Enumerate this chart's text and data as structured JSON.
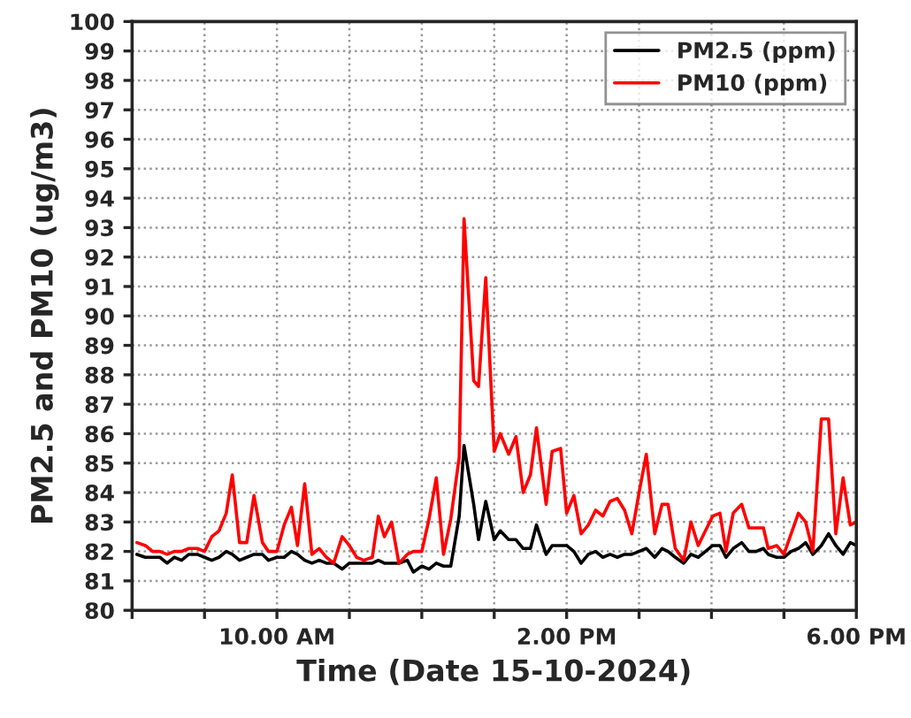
{
  "chart_data": {
    "type": "line",
    "xlabel": "Time (Date 15-10-2024)",
    "ylabel": "PM2.5 and PM10 (ug/m3)",
    "x": [
      "2024-10-15T08:04",
      "2024-10-15T08:11",
      "2024-10-15T08:17",
      "2024-10-15T08:23",
      "2024-10-15T08:29",
      "2024-10-15T08:35",
      "2024-10-15T08:41",
      "2024-10-15T08:47",
      "2024-10-15T08:54",
      "2024-10-15T09:00",
      "2024-10-15T09:06",
      "2024-10-15T09:12",
      "2024-10-15T09:18",
      "2024-10-15T09:23",
      "2024-10-15T09:29",
      "2024-10-15T09:35",
      "2024-10-15T09:41",
      "2024-10-15T09:48",
      "2024-10-15T09:53",
      "2024-10-15T10:00",
      "2024-10-15T10:06",
      "2024-10-15T10:12",
      "2024-10-15T10:17",
      "2024-10-15T10:23",
      "2024-10-15T10:29",
      "2024-10-15T10:35",
      "2024-10-15T10:41",
      "2024-10-15T10:47",
      "2024-10-15T10:54",
      "2024-10-15T11:00",
      "2024-10-15T11:06",
      "2024-10-15T11:12",
      "2024-10-15T11:19",
      "2024-10-15T11:24",
      "2024-10-15T11:29",
      "2024-10-15T11:35",
      "2024-10-15T11:41",
      "2024-10-15T11:48",
      "2024-10-15T11:53",
      "2024-10-15T12:00",
      "2024-10-15T12:06",
      "2024-10-15T12:12",
      "2024-10-15T12:18",
      "2024-10-15T12:24",
      "2024-10-15T12:31",
      "2024-10-15T12:35",
      "2024-10-15T12:43",
      "2024-10-15T12:47",
      "2024-10-15T12:53",
      "2024-10-15T13:00",
      "2024-10-15T13:05",
      "2024-10-15T13:12",
      "2024-10-15T13:18",
      "2024-10-15T13:24",
      "2024-10-15T13:30",
      "2024-10-15T13:35",
      "2024-10-15T13:43",
      "2024-10-15T13:48",
      "2024-10-15T13:55",
      "2024-10-15T14:00",
      "2024-10-15T14:06",
      "2024-10-15T14:12",
      "2024-10-15T14:18",
      "2024-10-15T14:24",
      "2024-10-15T14:30",
      "2024-10-15T14:36",
      "2024-10-15T14:42",
      "2024-10-15T14:48",
      "2024-10-15T14:54",
      "2024-10-15T15:00",
      "2024-10-15T15:06",
      "2024-10-15T15:13",
      "2024-10-15T15:19",
      "2024-10-15T15:24",
      "2024-10-15T15:30",
      "2024-10-15T15:37",
      "2024-10-15T15:43",
      "2024-10-15T15:49",
      "2024-10-15T15:55",
      "2024-10-15T16:01",
      "2024-10-15T16:07",
      "2024-10-15T16:12",
      "2024-10-15T16:18",
      "2024-10-15T16:25",
      "2024-10-15T16:31",
      "2024-10-15T16:37",
      "2024-10-15T16:43",
      "2024-10-15T16:47",
      "2024-10-15T16:54",
      "2024-10-15T17:00",
      "2024-10-15T17:06",
      "2024-10-15T17:12",
      "2024-10-15T17:18",
      "2024-10-15T17:24",
      "2024-10-15T17:31",
      "2024-10-15T17:37",
      "2024-10-15T17:43",
      "2024-10-15T17:49",
      "2024-10-15T17:55",
      "2024-10-15T18:00"
    ],
    "series": [
      {
        "name": "PM2.5 (ppm)",
        "color": "#000000",
        "values": [
          81.9,
          81.8,
          81.8,
          81.8,
          81.6,
          81.8,
          81.7,
          81.9,
          81.9,
          81.8,
          81.7,
          81.8,
          82.0,
          81.9,
          81.7,
          81.8,
          81.9,
          81.9,
          81.7,
          81.8,
          81.8,
          82.0,
          81.9,
          81.7,
          81.6,
          81.7,
          81.6,
          81.6,
          81.4,
          81.6,
          81.6,
          81.6,
          81.6,
          81.7,
          81.6,
          81.6,
          81.6,
          81.7,
          81.3,
          81.5,
          81.4,
          81.6,
          81.5,
          81.5,
          83.2,
          85.6,
          83.6,
          82.4,
          83.7,
          82.4,
          82.7,
          82.4,
          82.4,
          82.1,
          82.1,
          82.9,
          81.9,
          82.2,
          82.2,
          82.2,
          82.0,
          81.6,
          81.9,
          82.0,
          81.8,
          81.9,
          81.8,
          81.9,
          81.9,
          82.0,
          82.1,
          81.8,
          82.1,
          82.0,
          81.8,
          81.6,
          81.9,
          81.8,
          82.0,
          82.2,
          82.2,
          81.8,
          82.1,
          82.3,
          82.0,
          82.0,
          82.1,
          81.9,
          81.8,
          81.8,
          82.0,
          82.1,
          82.3,
          81.9,
          82.2,
          82.6,
          82.2,
          81.9,
          82.3,
          82.2
        ]
      },
      {
        "name": "PM10 (ppm)",
        "color": "#ff0000",
        "values": [
          82.3,
          82.2,
          82.0,
          82.0,
          81.9,
          82.0,
          82.0,
          82.1,
          82.1,
          82.0,
          82.5,
          82.7,
          83.3,
          84.6,
          82.3,
          82.3,
          83.9,
          82.3,
          82.0,
          82.0,
          82.9,
          83.5,
          82.2,
          84.3,
          81.9,
          82.1,
          81.8,
          81.6,
          82.5,
          82.2,
          81.8,
          81.7,
          81.8,
          83.2,
          82.5,
          83.0,
          81.6,
          81.9,
          82.0,
          82.0,
          83.1,
          84.5,
          81.9,
          83.1,
          85.2,
          93.3,
          87.8,
          87.6,
          91.3,
          85.4,
          86.0,
          85.3,
          85.9,
          84.0,
          84.6,
          86.2,
          83.6,
          85.4,
          85.5,
          83.3,
          83.9,
          82.6,
          82.9,
          83.4,
          83.2,
          83.7,
          83.8,
          83.4,
          82.6,
          84.0,
          85.3,
          82.6,
          83.6,
          83.6,
          82.1,
          81.7,
          83.0,
          82.2,
          82.7,
          83.2,
          83.3,
          82.0,
          83.3,
          83.6,
          82.8,
          82.8,
          82.8,
          82.1,
          82.2,
          81.9,
          82.6,
          83.3,
          83.0,
          82.0,
          86.5,
          86.5,
          82.6,
          84.5,
          82.9,
          83.0
        ]
      }
    ],
    "xlim": [
      "2024-10-15T08:00",
      "2024-10-15T18:00"
    ],
    "xticks": [
      {
        "value": "2024-10-15T08:00",
        "label": null
      },
      {
        "value": "2024-10-15T09:00",
        "label": null
      },
      {
        "value": "2024-10-15T10:00",
        "label": "10.00 AM"
      },
      {
        "value": "2024-10-15T11:00",
        "label": null
      },
      {
        "value": "2024-10-15T12:00",
        "label": null
      },
      {
        "value": "2024-10-15T13:00",
        "label": null
      },
      {
        "value": "2024-10-15T14:00",
        "label": "2.00 PM"
      },
      {
        "value": "2024-10-15T15:00",
        "label": null
      },
      {
        "value": "2024-10-15T16:00",
        "label": null
      },
      {
        "value": "2024-10-15T17:00",
        "label": null
      },
      {
        "value": "2024-10-15T18:00",
        "label": "6.00 PM"
      }
    ],
    "ylim": [
      80,
      100
    ],
    "yticks": [
      80,
      81,
      82,
      83,
      84,
      85,
      86,
      87,
      88,
      89,
      90,
      91,
      92,
      93,
      94,
      95,
      96,
      97,
      98,
      99,
      100
    ],
    "grid": true,
    "legend": "top right",
    "line_style": "solid",
    "marker": "none"
  }
}
